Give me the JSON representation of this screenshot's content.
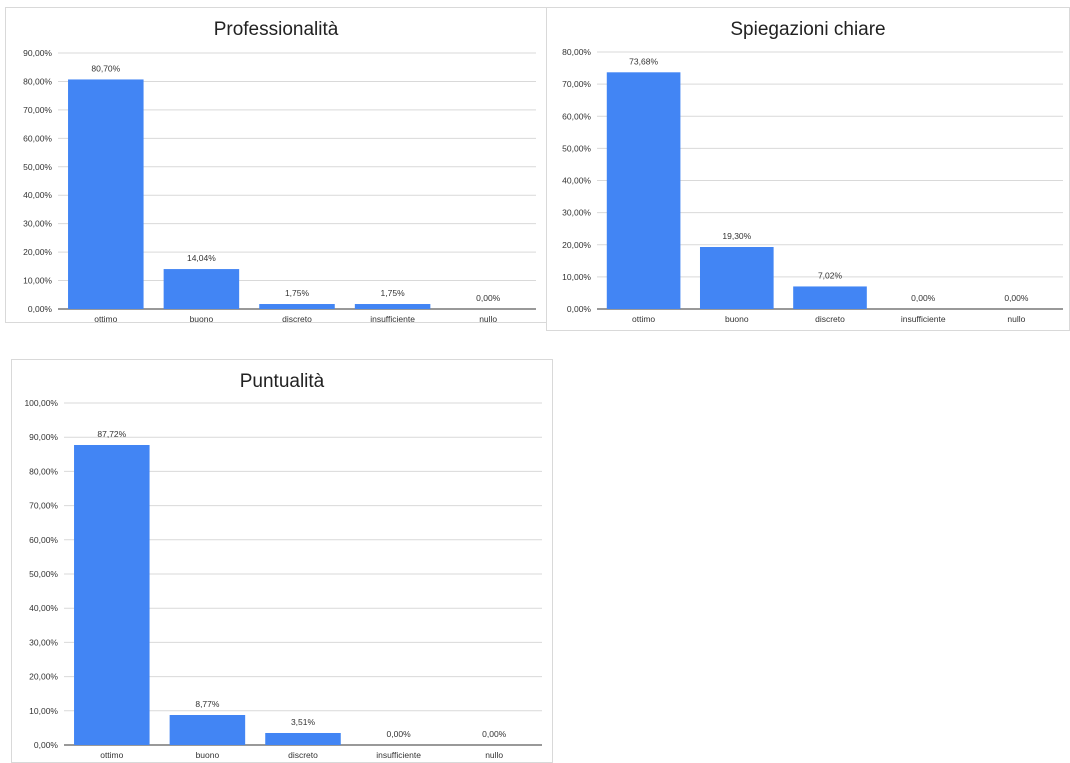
{
  "chart_data": [
    {
      "type": "bar",
      "title": "Professionalità",
      "categories": [
        "ottimo",
        "buono",
        "discreto",
        "insufficiente",
        "nullo"
      ],
      "values": [
        80.7,
        14.04,
        1.75,
        1.75,
        0.0
      ],
      "value_labels": [
        "80,70%",
        "14,04%",
        "1,75%",
        "1,75%",
        "0,00%"
      ],
      "ylim": [
        0,
        90
      ],
      "yticks": [
        0,
        10,
        20,
        30,
        40,
        50,
        60,
        70,
        80,
        90
      ],
      "ytick_labels": [
        "0,00%",
        "10,00%",
        "20,00%",
        "30,00%",
        "40,00%",
        "50,00%",
        "60,00%",
        "70,00%",
        "80,00%",
        "90,00%"
      ],
      "xlabel": "",
      "ylabel": "",
      "grid": true,
      "bar_color": "#4285f4"
    },
    {
      "type": "bar",
      "title": "Spiegazioni chiare",
      "categories": [
        "ottimo",
        "buono",
        "discreto",
        "insufficiente",
        "nullo"
      ],
      "values": [
        73.68,
        19.3,
        7.02,
        0.0,
        0.0
      ],
      "value_labels": [
        "73,68%",
        "19,30%",
        "7,02%",
        "0,00%",
        "0,00%"
      ],
      "ylim": [
        0,
        80
      ],
      "yticks": [
        0,
        10,
        20,
        30,
        40,
        50,
        60,
        70,
        80
      ],
      "ytick_labels": [
        "0,00%",
        "10,00%",
        "20,00%",
        "30,00%",
        "40,00%",
        "50,00%",
        "60,00%",
        "70,00%",
        "80,00%"
      ],
      "xlabel": "",
      "ylabel": "",
      "grid": true,
      "bar_color": "#4285f4"
    },
    {
      "type": "bar",
      "title": "Puntualità",
      "categories": [
        "ottimo",
        "buono",
        "discreto",
        "insufficiente",
        "nullo"
      ],
      "values": [
        87.72,
        8.77,
        3.51,
        0.0,
        0.0
      ],
      "value_labels": [
        "87,72%",
        "8,77%",
        "3,51%",
        "0,00%",
        "0,00%"
      ],
      "ylim": [
        0,
        100
      ],
      "yticks": [
        0,
        10,
        20,
        30,
        40,
        50,
        60,
        70,
        80,
        90,
        100
      ],
      "ytick_labels": [
        "0,00%",
        "10,00%",
        "20,00%",
        "30,00%",
        "40,00%",
        "50,00%",
        "60,00%",
        "70,00%",
        "80,00%",
        "90,00%",
        "100,00%"
      ],
      "xlabel": "",
      "ylabel": "",
      "grid": true,
      "bar_color": "#4285f4"
    }
  ]
}
